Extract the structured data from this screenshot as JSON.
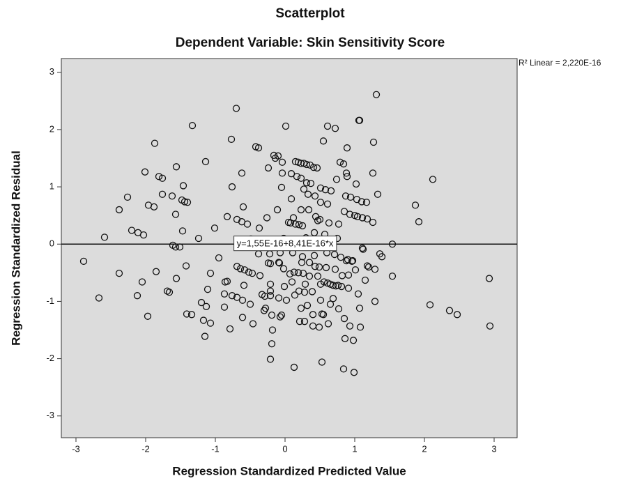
{
  "chart_data": {
    "type": "scatter",
    "title": "Scatterplot",
    "subtitle": "Dependent Variable: Skin Sensitivity Score",
    "x_label": "Regression Standardized Predicted Value",
    "y_label": "Regression Standardized Residual",
    "fit_label": "y=1,55E-16+8,41E-16*x",
    "r2_label": "R² Linear = 2,220E-16",
    "fit": {
      "intercept": 1.55e-16,
      "slope": 8.41e-16
    },
    "xlim": [
      -3.21,
      3.33
    ],
    "ylim": [
      -3.38,
      3.24
    ],
    "xticks": [
      -3,
      -2,
      -1,
      0,
      1,
      2,
      3
    ],
    "yticks": [
      -3,
      -2,
      -1,
      0,
      1,
      2,
      3
    ],
    "color": "#111111",
    "background": "#dcdcdc",
    "x": [
      -2.89,
      -2.67,
      -2.59,
      -2.38,
      -2.38,
      -2.26,
      -2.2,
      -2.11,
      -2.03,
      -2.12,
      -2.05,
      -2.01,
      -1.97,
      -1.96,
      -1.88,
      -1.87,
      -1.85,
      -1.81,
      -1.76,
      -1.76,
      -1.69,
      -1.66,
      -1.62,
      -1.61,
      -1.57,
      -1.56,
      -1.57,
      -1.56,
      -1.51,
      -1.46,
      -1.48,
      -1.44,
      -1.4,
      -1.47,
      -1.42,
      -1.41,
      -1.34,
      -1.33,
      -1.24,
      -1.2,
      -1.17,
      -1.14,
      -1.13,
      -1.15,
      -1.11,
      -1.07,
      -1.07,
      -1.01,
      -0.95,
      -0.87,
      -0.86,
      -0.83,
      -0.83,
      -0.87,
      -0.79,
      -0.77,
      -0.76,
      -0.76,
      -0.7,
      -0.69,
      -0.69,
      -0.69,
      -0.64,
      -0.62,
      -0.62,
      -0.61,
      -0.61,
      -0.6,
      -0.59,
      -0.58,
      -0.54,
      -0.52,
      -0.5,
      -0.49,
      -0.47,
      -0.46,
      -0.42,
      -0.38,
      -0.37,
      -0.38,
      -0.36,
      -0.33,
      -0.29,
      -0.3,
      -0.28,
      -0.26,
      -0.24,
      -0.24,
      -0.22,
      -0.21,
      -0.21,
      -0.21,
      -0.21,
      -0.19,
      -0.21,
      -0.19,
      -0.18,
      -0.16,
      -0.14,
      -0.1,
      -0.11,
      -0.09,
      -0.08,
      -0.07,
      -0.09,
      -0.07,
      -0.05,
      -0.05,
      -0.04,
      -0.04,
      -0.02,
      -0.02,
      -0.01,
      0.01,
      0.02,
      0.05,
      0.08,
      0.07,
      0.09,
      0.09,
      0.1,
      0.11,
      0.12,
      0.13,
      0.13,
      0.14,
      0.15,
      0.15,
      0.17,
      0.19,
      0.2,
      0.19,
      0.2,
      0.21,
      0.23,
      0.23,
      0.23,
      0.23,
      0.24,
      0.25,
      0.25,
      0.26,
      0.27,
      0.27,
      0.28,
      0.28,
      0.29,
      0.3,
      0.31,
      0.31,
      0.32,
      0.33,
      0.34,
      0.35,
      0.35,
      0.36,
      0.37,
      0.39,
      0.4,
      0.4,
      0.41,
      0.42,
      0.42,
      0.43,
      0.43,
      0.44,
      0.46,
      0.47,
      0.47,
      0.49,
      0.49,
      0.5,
      0.51,
      0.51,
      0.51,
      0.51,
      0.53,
      0.53,
      0.55,
      0.55,
      0.56,
      0.57,
      0.58,
      0.59,
      0.6,
      0.61,
      0.61,
      0.61,
      0.62,
      0.63,
      0.65,
      0.65,
      0.66,
      0.69,
      0.69,
      0.71,
      0.72,
      0.72,
      0.73,
      0.74,
      0.75,
      0.76,
      0.77,
      0.77,
      0.79,
      0.8,
      0.81,
      0.82,
      0.84,
      0.84,
      0.85,
      0.85,
      0.86,
      0.87,
      0.88,
      0.88,
      0.89,
      0.89,
      0.9,
      0.91,
      0.91,
      0.93,
      0.93,
      0.94,
      0.96,
      0.97,
      0.98,
      0.99,
      1.0,
      1.01,
      1.02,
      1.03,
      1.04,
      1.05,
      1.06,
      1.07,
      1.07,
      1.08,
      1.1,
      1.11,
      1.11,
      1.12,
      1.15,
      1.17,
      1.18,
      1.18,
      1.2,
      1.26,
      1.27,
      1.26,
      1.29,
      1.29,
      1.31,
      1.33,
      1.36,
      1.39,
      1.54,
      1.54,
      1.87,
      1.92,
      2.12,
      2.08,
      2.36,
      2.47,
      2.93,
      2.94
    ],
    "y": [
      -0.3,
      -0.94,
      0.12,
      0.6,
      -0.51,
      0.82,
      0.24,
      0.2,
      0.16,
      -0.9,
      -0.66,
      1.26,
      -1.26,
      0.68,
      0.65,
      1.76,
      -0.48,
      1.18,
      1.15,
      0.87,
      -0.82,
      -0.84,
      0.84,
      -0.02,
      -0.05,
      1.35,
      0.52,
      -0.6,
      -0.05,
      1.02,
      0.77,
      0.74,
      0.73,
      0.23,
      -0.38,
      -1.22,
      -1.23,
      2.07,
      0.1,
      -1.02,
      -1.33,
      1.44,
      -1.09,
      -1.61,
      -0.79,
      -1.38,
      -0.51,
      0.28,
      -0.24,
      -1.1,
      -0.66,
      -0.65,
      0.48,
      -0.87,
      -1.48,
      1.83,
      1.0,
      -0.9,
      2.37,
      0.43,
      -0.39,
      -0.93,
      -0.43,
      0.39,
      1.24,
      -0.98,
      -1.28,
      0.65,
      -0.72,
      -0.45,
      0.35,
      -0.49,
      -1.05,
      0.09,
      -0.51,
      -1.39,
      1.7,
      1.68,
      0.28,
      -0.17,
      -0.55,
      -0.88,
      -0.91,
      -1.16,
      -1.12,
      0.46,
      1.33,
      -0.33,
      -0.17,
      -0.34,
      -0.7,
      -0.82,
      -0.9,
      -1.24,
      -2.01,
      -1.74,
      -1.5,
      1.55,
      1.5,
      1.54,
      0.6,
      -0.32,
      -0.33,
      -0.15,
      -0.94,
      -1.27,
      -1.24,
      0.99,
      1.43,
      1.24,
      -0.43,
      0.1,
      -0.74,
      2.06,
      -0.98,
      0.38,
      0.37,
      -0.52,
      1.23,
      0.79,
      -0.66,
      -0.15,
      0.46,
      -2.15,
      -0.49,
      -0.89,
      1.44,
      0.35,
      1.18,
      1.43,
      0.34,
      -0.5,
      -0.82,
      -1.35,
      -1.12,
      1.15,
      1.41,
      0.6,
      -0.32,
      0.32,
      -0.22,
      -0.51,
      1.41,
      0.96,
      -1.35,
      -0.84,
      -0.7,
      0.11,
      1.39,
      1.07,
      -1.07,
      0.87,
      0.6,
      -0.32,
      -0.56,
      1.38,
      1.06,
      -0.83,
      -1.23,
      -1.43,
      1.34,
      0.2,
      -0.2,
      0.84,
      -0.39,
      0.48,
      1.33,
      0.41,
      -0.56,
      -1.45,
      -0.4,
      0.43,
      0.73,
      0.98,
      -0.98,
      -0.7,
      -1.22,
      -2.06,
      1.8,
      -1.23,
      -0.66,
      0.17,
      0.95,
      -0.41,
      -0.15,
      2.06,
      -0.68,
      0.7,
      -1.39,
      0.37,
      -0.7,
      -1.05,
      0.93,
      -0.72,
      -0.95,
      -0.18,
      2.02,
      -0.44,
      -0.73,
      1.13,
      0.1,
      -0.72,
      0.35,
      -1.13,
      1.43,
      -0.23,
      -0.74,
      -0.55,
      1.4,
      -2.18,
      0.57,
      -1.3,
      -1.65,
      0.84,
      1.24,
      -0.29,
      1.18,
      1.68,
      -0.27,
      -0.77,
      -0.54,
      0.52,
      -1.43,
      0.82,
      -0.3,
      -0.29,
      -1.68,
      -2.24,
      0.5,
      -0.45,
      1.05,
      0.78,
      0.48,
      -0.87,
      2.16,
      2.16,
      -1.12,
      -1.45,
      0.74,
      -0.07,
      0.46,
      -0.09,
      -0.63,
      0.73,
      0.44,
      -0.38,
      -0.4,
      1.24,
      1.78,
      0.38,
      -1.0,
      -0.44,
      2.61,
      0.87,
      -0.17,
      -0.22,
      0.0,
      -0.56,
      0.68,
      0.39,
      1.13,
      -1.06,
      -1.16,
      -1.23,
      -0.6,
      -1.43
    ]
  }
}
